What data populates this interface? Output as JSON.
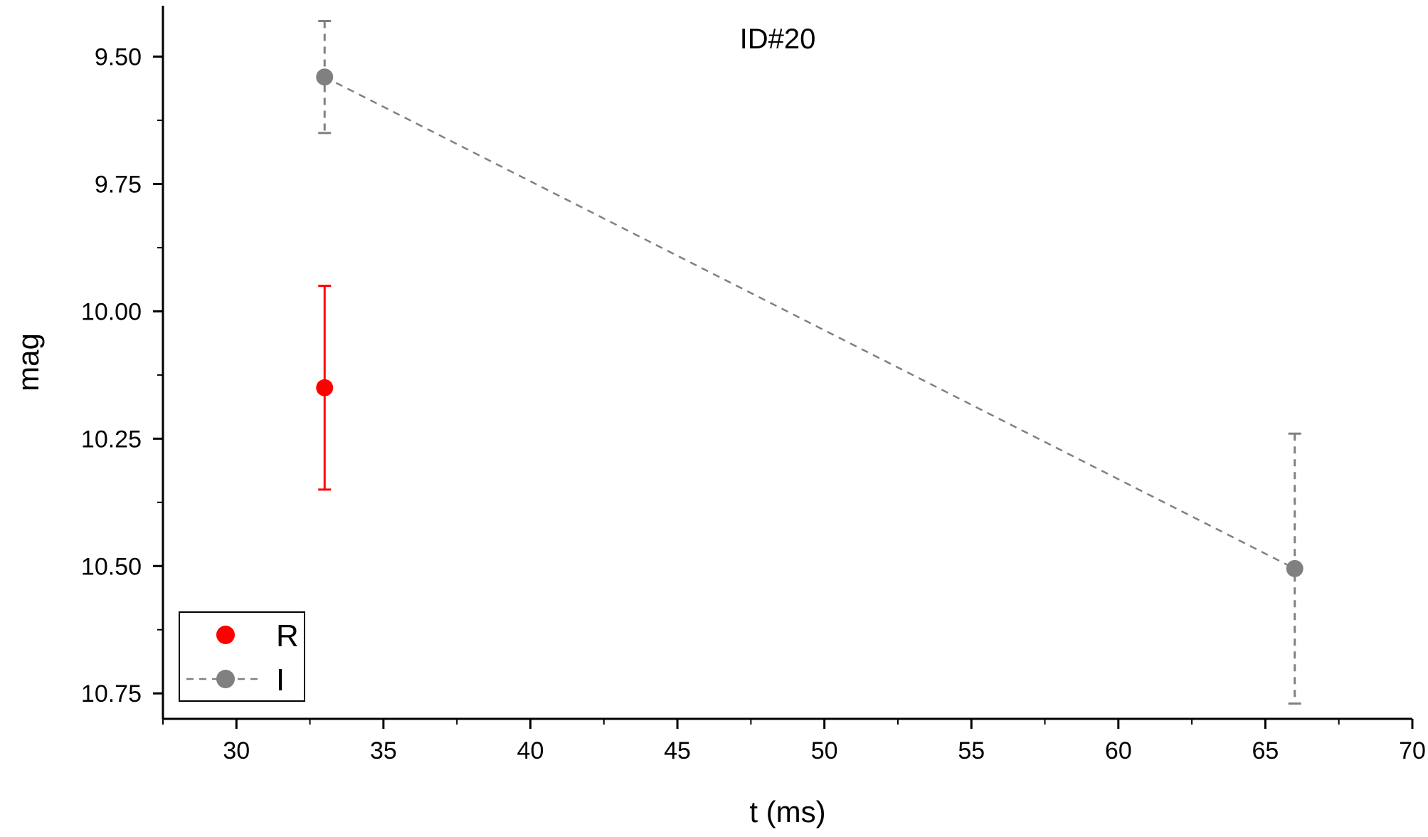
{
  "chart_data": {
    "type": "scatter",
    "title": "ID#20",
    "xlabel": "t (ms)",
    "ylabel": "mag",
    "xlim": [
      27.5,
      70
    ],
    "ylim": [
      10.8,
      9.4
    ],
    "y_inverted": true,
    "x_ticks": [
      30,
      35,
      40,
      45,
      50,
      55,
      60,
      65,
      70
    ],
    "x_tick_labels": [
      "30",
      "35",
      "40",
      "45",
      "50",
      "55",
      "60",
      "65",
      "70"
    ],
    "y_ticks": [
      9.5,
      9.75,
      10.0,
      10.25,
      10.5,
      10.75
    ],
    "y_tick_labels": [
      "9.50",
      "9.75",
      "10.00",
      "10.25",
      "10.50",
      "10.75"
    ],
    "x_minor_step": 2.5,
    "y_minor_step": 0.125,
    "grid": false,
    "legend_position": "bottom-left",
    "series": [
      {
        "name": "R",
        "color": "#ff0000",
        "line": "none",
        "points": [
          {
            "x": 33,
            "y": 10.15,
            "err_low": 0.2,
            "err_high": 0.2
          }
        ]
      },
      {
        "name": "I",
        "color": "#808080",
        "line": "dashed",
        "points": [
          {
            "x": 33,
            "y": 9.54,
            "err_low": 0.11,
            "err_high": 0.11
          },
          {
            "x": 66,
            "y": 10.505,
            "err_low": 0.265,
            "err_high": 0.265
          }
        ]
      }
    ]
  }
}
